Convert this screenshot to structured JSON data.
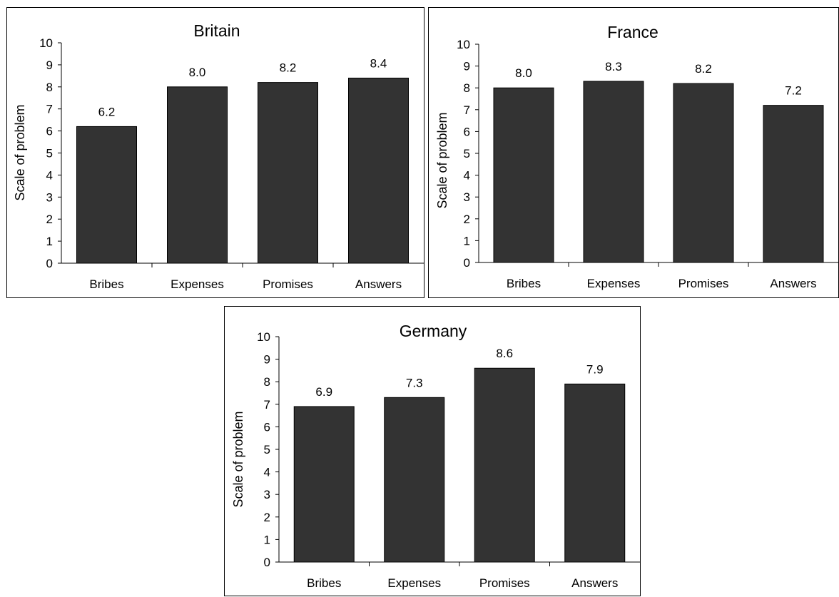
{
  "chart_data": [
    {
      "type": "bar",
      "title": "Britain",
      "ylabel": "Scale of problem",
      "xlabel": "",
      "categories": [
        "Bribes",
        "Expenses",
        "Promises",
        "Answers"
      ],
      "values": [
        6.2,
        8.0,
        8.2,
        8.4
      ],
      "value_labels": [
        "6.2",
        "8.0",
        "8.2",
        "8.4"
      ],
      "ylim": [
        0,
        10
      ],
      "yticks": [
        "0",
        "1",
        "2",
        "3",
        "4",
        "5",
        "6",
        "7",
        "8",
        "9",
        "10"
      ],
      "grid": false,
      "legend": "none",
      "bar_color": "#333333"
    },
    {
      "type": "bar",
      "title": "France",
      "ylabel": "Scale of problem",
      "xlabel": "",
      "categories": [
        "Bribes",
        "Expenses",
        "Promises",
        "Answers"
      ],
      "values": [
        8.0,
        8.3,
        8.2,
        7.2
      ],
      "value_labels": [
        "8.0",
        "8.3",
        "8.2",
        "7.2"
      ],
      "ylim": [
        0,
        10
      ],
      "yticks": [
        "0",
        "1",
        "2",
        "3",
        "4",
        "5",
        "6",
        "7",
        "8",
        "9",
        "10"
      ],
      "grid": false,
      "legend": "none",
      "bar_color": "#333333"
    },
    {
      "type": "bar",
      "title": "Germany",
      "ylabel": "Scale of problem",
      "xlabel": "",
      "categories": [
        "Bribes",
        "Expenses",
        "Promises",
        "Answers"
      ],
      "values": [
        6.9,
        7.3,
        8.6,
        7.9
      ],
      "value_labels": [
        "6.9",
        "7.3",
        "8.6",
        "7.9"
      ],
      "ylim": [
        0,
        10
      ],
      "yticks": [
        "0",
        "1",
        "2",
        "3",
        "4",
        "5",
        "6",
        "7",
        "8",
        "9",
        "10"
      ],
      "grid": false,
      "legend": "none",
      "bar_color": "#333333"
    }
  ]
}
